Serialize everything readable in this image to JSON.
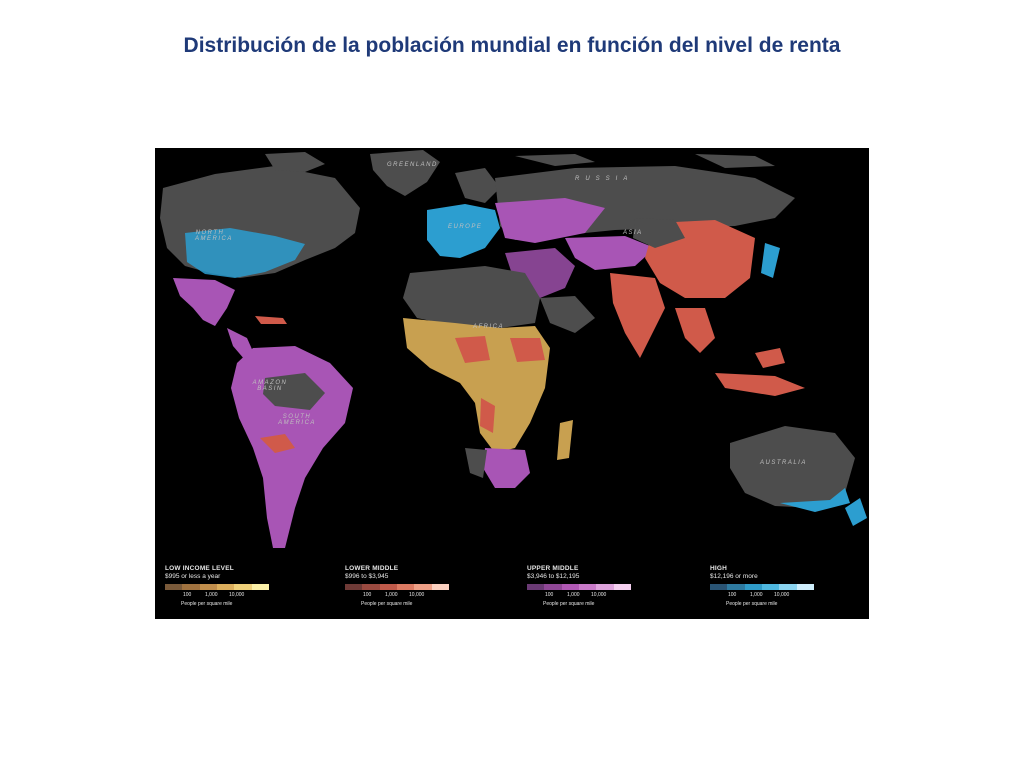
{
  "title": "Distribución de la población mundial en función del nivel de renta",
  "map": {
    "region_labels": {
      "north_america": "NORTH AMERICA",
      "south_america": "SOUTH AMERICA",
      "amazon_basin": "AMAZON BASIN",
      "europe": "EUROPE",
      "asia": "ASIA",
      "africa": "AFRICA",
      "russia": "RUSSIA",
      "australia": "AUSTRALIA",
      "greenland": "GREENLAND"
    },
    "colors": {
      "background": "#000000",
      "land": "#4d4d4d",
      "low_income": "#c8a050",
      "lower_middle": "#d05a4a",
      "upper_middle": "#a855b5",
      "high": "#2c9ed0"
    }
  },
  "legend": [
    {
      "title": "LOW INCOME LEVEL",
      "range": "$995 or less a year",
      "ticks": [
        "100",
        "1,000",
        "10,000"
      ],
      "unit": "People per square mile",
      "colors": [
        "#7a5a3a",
        "#a0723f",
        "#c18e4c",
        "#dcae5c",
        "#efd07a",
        "#fbf0a8"
      ]
    },
    {
      "title": "LOWER MIDDLE",
      "range": "$996 to $3,945",
      "ticks": [
        "100",
        "1,000",
        "10,000"
      ],
      "unit": "People per square mile",
      "colors": [
        "#6e3a36",
        "#9a4a40",
        "#c05a4a",
        "#dc7a62",
        "#ee9f86",
        "#fbd0c0"
      ]
    },
    {
      "title": "UPPER MIDDLE",
      "range": "$3,946 to $12,195",
      "ticks": [
        "100",
        "1,000",
        "10,000"
      ],
      "unit": "People per square mile",
      "colors": [
        "#6a3a74",
        "#8f4796",
        "#b058b4",
        "#c87ac8",
        "#dea3dc",
        "#f4d0f0"
      ]
    },
    {
      "title": "HIGH",
      "range": "$12,196 or more",
      "ticks": [
        "100",
        "1,000",
        "10,000"
      ],
      "unit": "People per square mile",
      "colors": [
        "#2a5474",
        "#2e7aa0",
        "#2f9bc8",
        "#4fb8e0",
        "#8ad4f0",
        "#cfeefc"
      ]
    }
  ]
}
